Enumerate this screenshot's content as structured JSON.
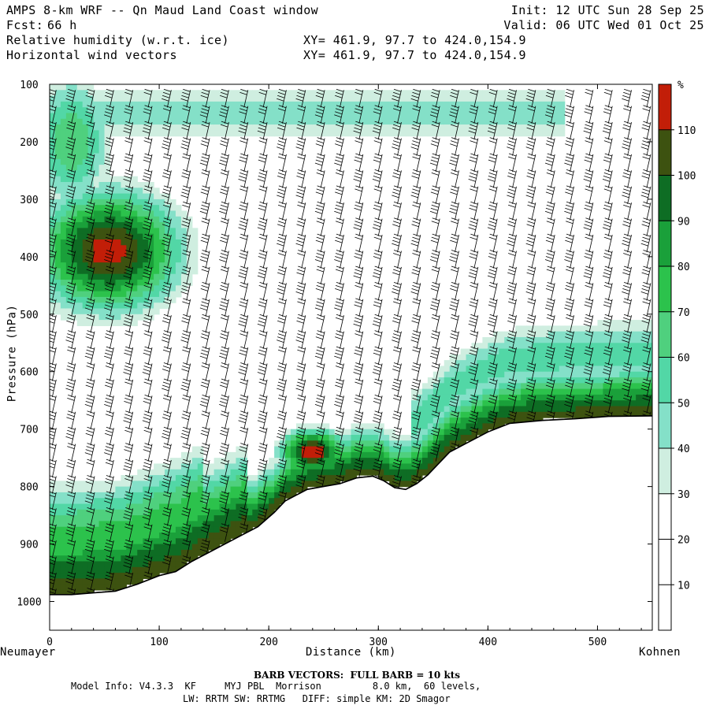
{
  "header": {
    "title": "AMPS 8-km WRF -- Qn Maud Land Coast window",
    "forecast_label": "Fcst:",
    "forecast_value": "66 h",
    "init": "Init: 12 UTC Sun 28 Sep 25",
    "valid": "Valid: 06 UTC Wed 01 Oct 25",
    "field1": "Relative humidity (w.r.t. ice)",
    "field2": "Horizontal wind vectors",
    "xy1": "XY= 461.9, 97.7 to 424.0,154.9",
    "xy2": "XY= 461.9, 97.7 to 424.0,154.9"
  },
  "footer": {
    "barb_note": "BARB VECTORS:  FULL BARB = 10 kts",
    "model_line1": "Model Info: V4.3.3  KF     MYJ PBL  Morrison         8.0 km,  60 levels,",
    "model_line2": "LW: RRTM SW: RRTMG   DIFF: simple KM: 2D Smagor"
  },
  "chart_data": {
    "type": "heatmap",
    "title": "Relative humidity (w.r.t. ice) cross-section with horizontal wind vectors",
    "xlabel": "Distance (km)",
    "ylabel": "Pressure (hPa)",
    "x_ticks": [
      0,
      100,
      200,
      300,
      400,
      500
    ],
    "y_ticks": [
      100,
      200,
      300,
      400,
      500,
      600,
      700,
      800,
      900,
      1000
    ],
    "xlim": [
      0,
      550
    ],
    "ylim": [
      1050,
      100
    ],
    "y_axis_reversed": true,
    "left_endpoint": "Neumayer",
    "right_endpoint": "Kohnen",
    "colorbar": {
      "unit": "%",
      "levels": [
        10,
        20,
        30,
        40,
        50,
        60,
        70,
        80,
        90,
        100,
        110
      ],
      "colors": [
        "#ffffff",
        "#ffffff",
        "#ffffff",
        "#cfeee0",
        "#84e0c8",
        "#52d7a6",
        "#4fd07e",
        "#2cc24c",
        "#1aa03a",
        "#0e6d24",
        "#3d5210",
        "#c21e08"
      ]
    },
    "terrain_surface": {
      "distance_km": [
        0,
        20,
        40,
        60,
        80,
        100,
        115,
        130,
        145,
        160,
        175,
        190,
        205,
        215,
        225,
        235,
        250,
        265,
        280,
        295,
        305,
        315,
        325,
        335,
        345,
        355,
        365,
        380,
        400,
        420,
        450,
        480,
        510,
        550
      ],
      "pressure_hpa": [
        988,
        988,
        985,
        982,
        970,
        955,
        948,
        930,
        915,
        900,
        885,
        870,
        845,
        825,
        815,
        805,
        800,
        795,
        785,
        782,
        790,
        802,
        805,
        795,
        780,
        760,
        740,
        725,
        705,
        690,
        685,
        682,
        678,
        677
      ]
    },
    "features": {
      "moist_layer_upper_left": "RH 100-110% between about 300 and 500 hPa near 0-130 km",
      "saturated_band_near_surface": "RH above 100% in a thin layer just above the terrain",
      "max_region": "RH above 110% near 210-270 km at about 700-790 hPa"
    },
    "barb_vectors": "FULL BARB = 10 kts"
  }
}
